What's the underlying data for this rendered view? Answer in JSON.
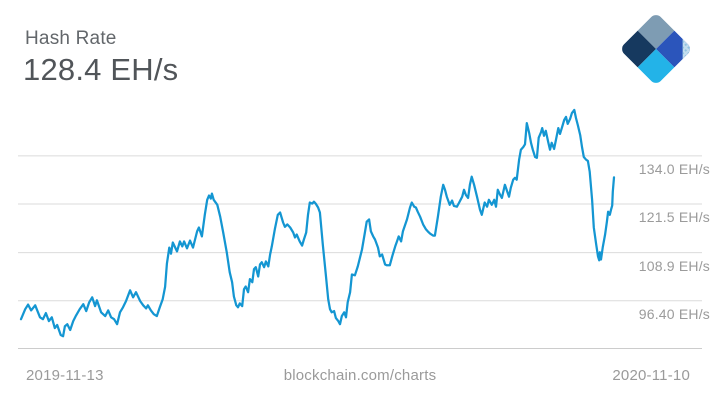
{
  "header": {
    "title": "Hash Rate",
    "current_value": "128.4 EH/s"
  },
  "logo": {
    "name": "blockchain.com diamond logo",
    "colors": {
      "top": "#7e9cb3",
      "right": "#2b55bb",
      "left": "#16395f",
      "bottom": "#23b3e8",
      "corner_dots": "#c3ddee"
    }
  },
  "footer": {
    "x_start_label": "2019-11-13",
    "watermark": "blockchain.com/charts",
    "x_end_label": "2020-11-10"
  },
  "chart_data": {
    "type": "line",
    "title": "Hash Rate",
    "current_value": 128.4,
    "unit": "EH/s",
    "xlabel": "",
    "ylabel": "",
    "x_range": [
      "2019-11-13",
      "2020-11-10"
    ],
    "grid": true,
    "legend": false,
    "line_color": "#1496d2",
    "grid_color": "#dbdbdb",
    "axis_color": "#cccccc",
    "y_ticks": [
      "134.0 EH/s",
      "121.5 EH/s",
      "108.9 EH/s",
      "96.40 EH/s"
    ],
    "y_tick_values": [
      134.0,
      121.5,
      108.9,
      96.4
    ],
    "ylim": [
      84.0,
      147.2
    ],
    "series": [
      {
        "name": "Hash Rate (EH/s)",
        "points": [
          [
            0.0,
            91.6
          ],
          [
            0.007,
            94.2
          ],
          [
            0.012,
            95.4
          ],
          [
            0.017,
            93.9
          ],
          [
            0.024,
            95.2
          ],
          [
            0.032,
            92.1
          ],
          [
            0.037,
            91.6
          ],
          [
            0.042,
            93.2
          ],
          [
            0.047,
            91.1
          ],
          [
            0.052,
            92.1
          ],
          [
            0.057,
            89.3
          ],
          [
            0.061,
            90.1
          ],
          [
            0.067,
            87.5
          ],
          [
            0.071,
            87.2
          ],
          [
            0.074,
            89.8
          ],
          [
            0.078,
            90.3
          ],
          [
            0.083,
            88.8
          ],
          [
            0.088,
            91.1
          ],
          [
            0.093,
            92.6
          ],
          [
            0.099,
            94.2
          ],
          [
            0.105,
            95.5
          ],
          [
            0.11,
            93.7
          ],
          [
            0.115,
            96.0
          ],
          [
            0.12,
            97.3
          ],
          [
            0.125,
            95.0
          ],
          [
            0.128,
            96.5
          ],
          [
            0.135,
            93.4
          ],
          [
            0.142,
            92.4
          ],
          [
            0.147,
            93.9
          ],
          [
            0.152,
            92.1
          ],
          [
            0.157,
            91.6
          ],
          [
            0.162,
            90.3
          ],
          [
            0.167,
            93.4
          ],
          [
            0.172,
            94.7
          ],
          [
            0.177,
            96.3
          ],
          [
            0.184,
            99.1
          ],
          [
            0.189,
            97.3
          ],
          [
            0.194,
            98.6
          ],
          [
            0.201,
            96.3
          ],
          [
            0.206,
            95.2
          ],
          [
            0.211,
            94.4
          ],
          [
            0.214,
            95.2
          ],
          [
            0.219,
            93.9
          ],
          [
            0.224,
            92.9
          ],
          [
            0.229,
            92.4
          ],
          [
            0.234,
            94.7
          ],
          [
            0.239,
            96.8
          ],
          [
            0.243,
            100.0
          ],
          [
            0.246,
            106.0
          ],
          [
            0.25,
            110.2
          ],
          [
            0.253,
            108.6
          ],
          [
            0.256,
            111.5
          ],
          [
            0.263,
            109.2
          ],
          [
            0.268,
            111.8
          ],
          [
            0.272,
            110.5
          ],
          [
            0.275,
            111.8
          ],
          [
            0.28,
            110.0
          ],
          [
            0.285,
            112.0
          ],
          [
            0.29,
            110.2
          ],
          [
            0.297,
            114.4
          ],
          [
            0.3,
            115.4
          ],
          [
            0.305,
            113.1
          ],
          [
            0.31,
            118.7
          ],
          [
            0.314,
            122.6
          ],
          [
            0.317,
            123.7
          ],
          [
            0.32,
            122.9
          ],
          [
            0.322,
            124.2
          ],
          [
            0.325,
            122.6
          ],
          [
            0.331,
            121.3
          ],
          [
            0.336,
            118.2
          ],
          [
            0.341,
            114.1
          ],
          [
            0.347,
            108.9
          ],
          [
            0.352,
            103.8
          ],
          [
            0.356,
            101.2
          ],
          [
            0.359,
            97.5
          ],
          [
            0.363,
            95.2
          ],
          [
            0.366,
            94.7
          ],
          [
            0.369,
            95.7
          ],
          [
            0.373,
            95.0
          ],
          [
            0.376,
            99.4
          ],
          [
            0.379,
            100.1
          ],
          [
            0.383,
            98.6
          ],
          [
            0.386,
            102.0
          ],
          [
            0.39,
            101.2
          ],
          [
            0.393,
            104.6
          ],
          [
            0.396,
            105.1
          ],
          [
            0.4,
            102.7
          ],
          [
            0.403,
            105.8
          ],
          [
            0.406,
            106.4
          ],
          [
            0.41,
            105.1
          ],
          [
            0.413,
            106.6
          ],
          [
            0.417,
            105.3
          ],
          [
            0.42,
            108.4
          ],
          [
            0.423,
            110.5
          ],
          [
            0.428,
            114.9
          ],
          [
            0.433,
            118.7
          ],
          [
            0.437,
            119.3
          ],
          [
            0.442,
            116.7
          ],
          [
            0.445,
            115.6
          ],
          [
            0.449,
            116.2
          ],
          [
            0.454,
            115.4
          ],
          [
            0.459,
            114.1
          ],
          [
            0.462,
            112.8
          ],
          [
            0.465,
            113.6
          ],
          [
            0.47,
            111.8
          ],
          [
            0.474,
            110.7
          ],
          [
            0.477,
            112.3
          ],
          [
            0.481,
            114.1
          ],
          [
            0.484,
            118.7
          ],
          [
            0.487,
            121.9
          ],
          [
            0.491,
            121.6
          ],
          [
            0.494,
            122.1
          ],
          [
            0.497,
            121.6
          ],
          [
            0.501,
            120.6
          ],
          [
            0.504,
            119.3
          ],
          [
            0.509,
            111.0
          ],
          [
            0.514,
            103.2
          ],
          [
            0.518,
            96.8
          ],
          [
            0.521,
            94.2
          ],
          [
            0.524,
            93.4
          ],
          [
            0.528,
            93.7
          ],
          [
            0.531,
            91.9
          ],
          [
            0.535,
            91.1
          ],
          [
            0.538,
            90.3
          ],
          [
            0.541,
            92.4
          ],
          [
            0.545,
            93.4
          ],
          [
            0.548,
            92.1
          ],
          [
            0.551,
            96.0
          ],
          [
            0.555,
            98.6
          ],
          [
            0.558,
            103.2
          ],
          [
            0.563,
            103.0
          ],
          [
            0.568,
            105.3
          ],
          [
            0.575,
            109.7
          ],
          [
            0.58,
            114.1
          ],
          [
            0.583,
            116.9
          ],
          [
            0.587,
            117.5
          ],
          [
            0.59,
            114.4
          ],
          [
            0.594,
            113.1
          ],
          [
            0.597,
            112.3
          ],
          [
            0.602,
            110.2
          ],
          [
            0.605,
            107.9
          ],
          [
            0.609,
            108.4
          ],
          [
            0.614,
            105.8
          ],
          [
            0.617,
            105.6
          ],
          [
            0.622,
            105.6
          ],
          [
            0.626,
            107.9
          ],
          [
            0.631,
            110.5
          ],
          [
            0.634,
            111.8
          ],
          [
            0.637,
            113.1
          ],
          [
            0.641,
            111.8
          ],
          [
            0.644,
            114.4
          ],
          [
            0.651,
            117.5
          ],
          [
            0.656,
            120.6
          ],
          [
            0.659,
            121.9
          ],
          [
            0.663,
            120.8
          ],
          [
            0.666,
            120.6
          ],
          [
            0.669,
            119.5
          ],
          [
            0.673,
            118.2
          ],
          [
            0.678,
            116.2
          ],
          [
            0.683,
            114.9
          ],
          [
            0.686,
            114.4
          ],
          [
            0.69,
            113.8
          ],
          [
            0.695,
            113.3
          ],
          [
            0.698,
            113.3
          ],
          [
            0.703,
            118.2
          ],
          [
            0.708,
            123.4
          ],
          [
            0.712,
            126.5
          ],
          [
            0.715,
            125.2
          ],
          [
            0.718,
            123.4
          ],
          [
            0.723,
            121.3
          ],
          [
            0.727,
            122.4
          ],
          [
            0.73,
            121.0
          ],
          [
            0.735,
            120.8
          ],
          [
            0.739,
            121.9
          ],
          [
            0.744,
            123.4
          ],
          [
            0.747,
            125.2
          ],
          [
            0.75,
            123.9
          ],
          [
            0.754,
            123.1
          ],
          [
            0.757,
            126.5
          ],
          [
            0.76,
            128.6
          ],
          [
            0.764,
            126.5
          ],
          [
            0.769,
            123.4
          ],
          [
            0.774,
            120.0
          ],
          [
            0.777,
            118.7
          ],
          [
            0.782,
            121.9
          ],
          [
            0.786,
            120.8
          ],
          [
            0.789,
            122.6
          ],
          [
            0.794,
            121.3
          ],
          [
            0.798,
            122.6
          ],
          [
            0.801,
            120.8
          ],
          [
            0.804,
            125.2
          ],
          [
            0.808,
            123.9
          ],
          [
            0.811,
            123.1
          ],
          [
            0.816,
            126.5
          ],
          [
            0.82,
            124.7
          ],
          [
            0.823,
            123.4
          ],
          [
            0.826,
            125.7
          ],
          [
            0.83,
            127.8
          ],
          [
            0.833,
            128.3
          ],
          [
            0.836,
            127.8
          ],
          [
            0.84,
            133.0
          ],
          [
            0.843,
            135.6
          ],
          [
            0.847,
            136.3
          ],
          [
            0.85,
            137.0
          ],
          [
            0.853,
            142.5
          ],
          [
            0.857,
            139.9
          ],
          [
            0.86,
            137.4
          ],
          [
            0.863,
            135.6
          ],
          [
            0.867,
            133.7
          ],
          [
            0.87,
            133.5
          ],
          [
            0.873,
            138.7
          ],
          [
            0.877,
            140.2
          ],
          [
            0.879,
            141.2
          ],
          [
            0.882,
            139.2
          ],
          [
            0.885,
            140.5
          ],
          [
            0.889,
            137.6
          ],
          [
            0.892,
            135.6
          ],
          [
            0.895,
            137.4
          ],
          [
            0.899,
            135.8
          ],
          [
            0.902,
            138.1
          ],
          [
            0.906,
            141.2
          ],
          [
            0.909,
            139.7
          ],
          [
            0.912,
            141.2
          ],
          [
            0.916,
            143.3
          ],
          [
            0.919,
            144.1
          ],
          [
            0.922,
            142.3
          ],
          [
            0.926,
            143.6
          ],
          [
            0.929,
            145.1
          ],
          [
            0.933,
            145.9
          ],
          [
            0.936,
            143.8
          ],
          [
            0.939,
            142.0
          ],
          [
            0.943,
            139.4
          ],
          [
            0.946,
            136.3
          ],
          [
            0.949,
            133.7
          ],
          [
            0.953,
            133.0
          ],
          [
            0.956,
            132.7
          ],
          [
            0.959,
            129.9
          ],
          [
            0.963,
            122.6
          ],
          [
            0.966,
            115.4
          ],
          [
            0.97,
            111.0
          ],
          [
            0.973,
            107.9
          ],
          [
            0.975,
            106.9
          ],
          [
            0.976,
            109.0
          ],
          [
            0.978,
            107.1
          ],
          [
            0.981,
            110.2
          ],
          [
            0.985,
            113.6
          ],
          [
            0.988,
            116.9
          ],
          [
            0.99,
            119.5
          ],
          [
            0.993,
            118.7
          ],
          [
            0.995,
            120.0
          ],
          [
            0.997,
            121.1
          ],
          [
            0.998,
            124.7
          ],
          [
            1.0,
            128.4
          ]
        ]
      }
    ]
  }
}
